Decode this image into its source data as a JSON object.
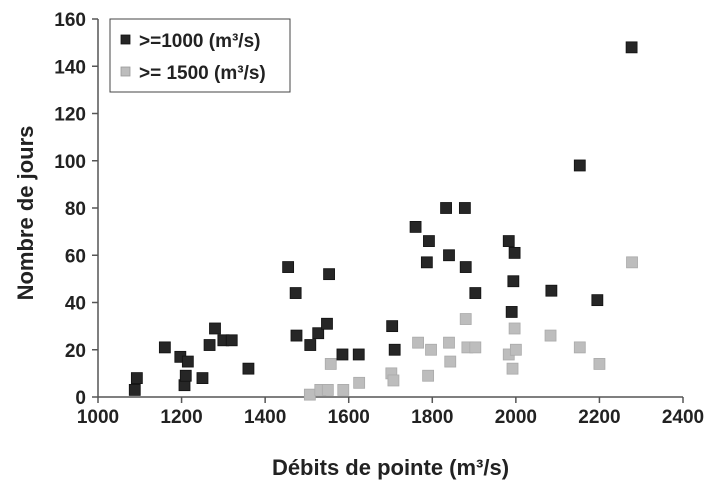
{
  "chart_data": {
    "type": "scatter",
    "xlabel": "Débits de pointe (m³/s)",
    "ylabel": "Nombre de jours",
    "xlim": [
      1000,
      2400
    ],
    "ylim": [
      0,
      160
    ],
    "x_ticks": [
      1000,
      1200,
      1400,
      1600,
      1800,
      2000,
      2200,
      2400
    ],
    "y_ticks": [
      0,
      20,
      40,
      60,
      80,
      100,
      120,
      140,
      160
    ],
    "grid": false,
    "legend_position": "top-left",
    "series": [
      {
        "name": ">=1000 (m³/s)",
        "marker_color": "#262626",
        "points": [
          [
            1088,
            3
          ],
          [
            1093,
            8
          ],
          [
            1160,
            21
          ],
          [
            1197,
            17
          ],
          [
            1207,
            5
          ],
          [
            1210,
            9
          ],
          [
            1215,
            15
          ],
          [
            1250,
            8
          ],
          [
            1267,
            22
          ],
          [
            1280,
            29
          ],
          [
            1300,
            24
          ],
          [
            1320,
            24
          ],
          [
            1360,
            12
          ],
          [
            1455,
            55
          ],
          [
            1473,
            44
          ],
          [
            1475,
            26
          ],
          [
            1508,
            22
          ],
          [
            1527,
            27
          ],
          [
            1548,
            31
          ],
          [
            1553,
            52
          ],
          [
            1585,
            18
          ],
          [
            1624,
            18
          ],
          [
            1704,
            30
          ],
          [
            1710,
            20
          ],
          [
            1760,
            72
          ],
          [
            1787,
            57
          ],
          [
            1792,
            66
          ],
          [
            1833,
            80
          ],
          [
            1840,
            60
          ],
          [
            1878,
            80
          ],
          [
            1880,
            55
          ],
          [
            1903,
            44
          ],
          [
            1983,
            66
          ],
          [
            1990,
            36
          ],
          [
            1994,
            49
          ],
          [
            1997,
            61
          ],
          [
            2085,
            45
          ],
          [
            2153,
            98
          ],
          [
            2195,
            41
          ],
          [
            2277,
            148
          ]
        ]
      },
      {
        "name": ">= 1500 (m³/s)",
        "marker_color": "#bdbdbd",
        "points": [
          [
            1507,
            1
          ],
          [
            1532,
            3
          ],
          [
            1550,
            3
          ],
          [
            1557,
            14
          ],
          [
            1587,
            3
          ],
          [
            1625,
            6
          ],
          [
            1702,
            10
          ],
          [
            1707,
            7
          ],
          [
            1766,
            23
          ],
          [
            1790,
            9
          ],
          [
            1797,
            20
          ],
          [
            1840,
            23
          ],
          [
            1843,
            15
          ],
          [
            1880,
            33
          ],
          [
            1884,
            21
          ],
          [
            1903,
            21
          ],
          [
            1983,
            18
          ],
          [
            1992,
            12
          ],
          [
            1997,
            29
          ],
          [
            2000,
            20
          ],
          [
            2083,
            26
          ],
          [
            2153,
            21
          ],
          [
            2200,
            14
          ],
          [
            2278,
            57
          ]
        ]
      }
    ]
  }
}
